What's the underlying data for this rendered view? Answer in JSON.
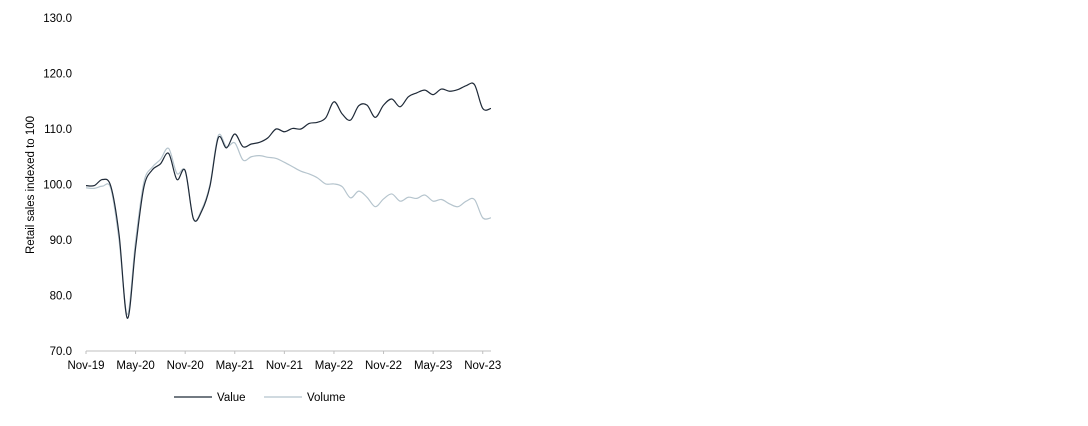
{
  "chart_data": {
    "type": "line",
    "title": "",
    "xlabel": "",
    "ylabel": "Retail sales indexed to 100",
    "ylim": [
      70,
      130
    ],
    "yticks": [
      "70.0",
      "80.0",
      "90.0",
      "100.0",
      "110.0",
      "120.0",
      "130.0"
    ],
    "xticks": [
      "Nov-19",
      "May-20",
      "Nov-20",
      "May-21",
      "Nov-21",
      "May-22",
      "Nov-22",
      "May-23",
      "Nov-23"
    ],
    "x": [
      "Nov-19",
      "Dec-19",
      "Jan-20",
      "Feb-20",
      "Mar-20",
      "Apr-20",
      "May-20",
      "Jun-20",
      "Jul-20",
      "Aug-20",
      "Sep-20",
      "Oct-20",
      "Nov-20",
      "Dec-20",
      "Jan-21",
      "Feb-21",
      "Mar-21",
      "Apr-21",
      "May-21",
      "Jun-21",
      "Jul-21",
      "Aug-21",
      "Sep-21",
      "Oct-21",
      "Nov-21",
      "Dec-21",
      "Jan-22",
      "Feb-22",
      "Mar-22",
      "Apr-22",
      "May-22",
      "Jun-22",
      "Jul-22",
      "Aug-22",
      "Sep-22",
      "Oct-22",
      "Nov-22",
      "Dec-22",
      "Jan-23",
      "Feb-23",
      "Mar-23",
      "Apr-23",
      "May-23",
      "Jun-23",
      "Jul-23",
      "Aug-23",
      "Sep-23",
      "Oct-23",
      "Nov-23",
      "Dec-23"
    ],
    "grid": false,
    "legend_position": "bottom",
    "series": [
      {
        "name": "Value",
        "color": "#1f2a38",
        "values": [
          99.8,
          99.8,
          100.9,
          99.7,
          91.0,
          75.9,
          88.6,
          99.5,
          102.6,
          103.7,
          105.6,
          100.9,
          102.5,
          93.8,
          95.2,
          99.7,
          108.4,
          106.6,
          109.1,
          106.8,
          107.3,
          107.6,
          108.4,
          110.0,
          109.5,
          110.1,
          110.0,
          111.0,
          111.2,
          112.0,
          114.9,
          112.7,
          111.6,
          114.2,
          114.3,
          112.1,
          114.3,
          115.4,
          114.0,
          115.8,
          116.5,
          117.0,
          116.2,
          117.2,
          116.8,
          117.1,
          117.8,
          118.0,
          113.7,
          113.7
        ]
      },
      {
        "name": "Volume",
        "color": "#b5c4cd",
        "values": [
          99.4,
          99.3,
          99.7,
          99.3,
          90.0,
          76.6,
          89.8,
          100.4,
          103.1,
          104.5,
          106.5,
          102.0,
          102.4,
          93.8,
          95.5,
          100.0,
          108.8,
          106.8,
          107.5,
          104.4,
          105.0,
          105.2,
          104.9,
          104.7,
          104.0,
          103.2,
          102.4,
          101.9,
          101.2,
          100.1,
          100.1,
          99.6,
          97.6,
          98.8,
          97.7,
          96.0,
          97.4,
          98.3,
          97.0,
          97.7,
          97.5,
          98.1,
          97.0,
          97.3,
          96.5,
          96.0,
          97.0,
          97.3,
          94.0,
          94.0
        ]
      }
    ]
  }
}
